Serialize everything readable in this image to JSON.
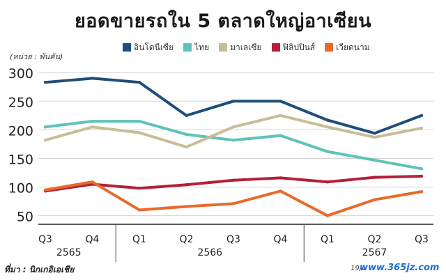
{
  "chart_data": {
    "type": "line",
    "title": "ยอดขายรถใน 5 ตลาดใหญ่อาเซียน",
    "unit_label": "(หน่วย : พันคัน)",
    "categories": [
      "Q3",
      "Q4",
      "Q1",
      "Q2",
      "Q3",
      "Q4",
      "Q1",
      "Q2",
      "Q3"
    ],
    "year_groups": [
      {
        "label": "2565",
        "start": 0,
        "end": 1
      },
      {
        "label": "2566",
        "start": 2,
        "end": 5
      },
      {
        "label": "2567",
        "start": 6,
        "end": 8
      }
    ],
    "yticks": [
      50,
      100,
      150,
      200,
      250,
      300
    ],
    "ylim": [
      35,
      310
    ],
    "grid": "horizontal",
    "legend_position": "top",
    "series": [
      {
        "name": "อินโดนีเซีย",
        "color": "#1f4e79",
        "values": [
          283,
          290,
          283,
          225,
          250,
          250,
          217,
          194,
          225
        ]
      },
      {
        "name": "ไทย",
        "color": "#5ec3b8",
        "values": [
          205,
          215,
          215,
          192,
          182,
          190,
          162,
          147,
          132
        ]
      },
      {
        "name": "มาเลเซีย",
        "color": "#c9bd98",
        "values": [
          182,
          205,
          195,
          170,
          205,
          225,
          205,
          187,
          203
        ]
      },
      {
        "name": "ฟิลิปปินส์",
        "color": "#b3203a",
        "values": [
          93,
          105,
          98,
          104,
          112,
          116,
          109,
          117,
          119
        ]
      },
      {
        "name": "เวียดนาม",
        "color": "#e86b2a",
        "values": [
          95,
          109,
          60,
          66,
          71,
          93,
          50,
          78,
          92
        ]
      }
    ]
  },
  "footer": {
    "source": "ที่มา : นิกเกอิเอเชีย",
    "date": "19/1",
    "watermark": "www.365jz.com"
  }
}
